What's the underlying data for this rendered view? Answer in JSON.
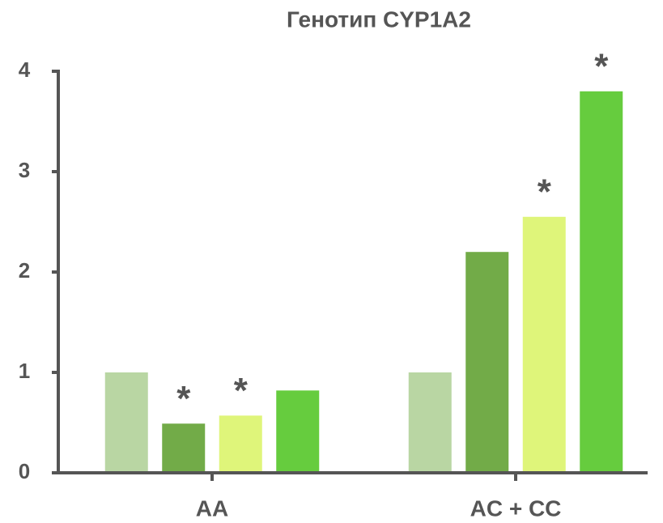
{
  "chart_data": {
    "type": "bar",
    "title": "Генотип CYP1A2",
    "categories": [
      "AA",
      "AC + CC"
    ],
    "series": [
      {
        "color": "#b9d6a3",
        "values": [
          1.0,
          1.0
        ],
        "markers": [
          null,
          null
        ]
      },
      {
        "color": "#72ab48",
        "values": [
          0.49,
          2.2
        ],
        "markers": [
          "*",
          null
        ]
      },
      {
        "color": "#dff57a",
        "values": [
          0.57,
          2.55
        ],
        "markers": [
          "*",
          "*"
        ]
      },
      {
        "color": "#66cc3e",
        "values": [
          0.82,
          3.8
        ],
        "markers": [
          null,
          "*"
        ]
      }
    ],
    "ylim": [
      0,
      4
    ],
    "yticks": [
      0,
      1,
      2,
      3,
      4
    ],
    "grid": false
  }
}
